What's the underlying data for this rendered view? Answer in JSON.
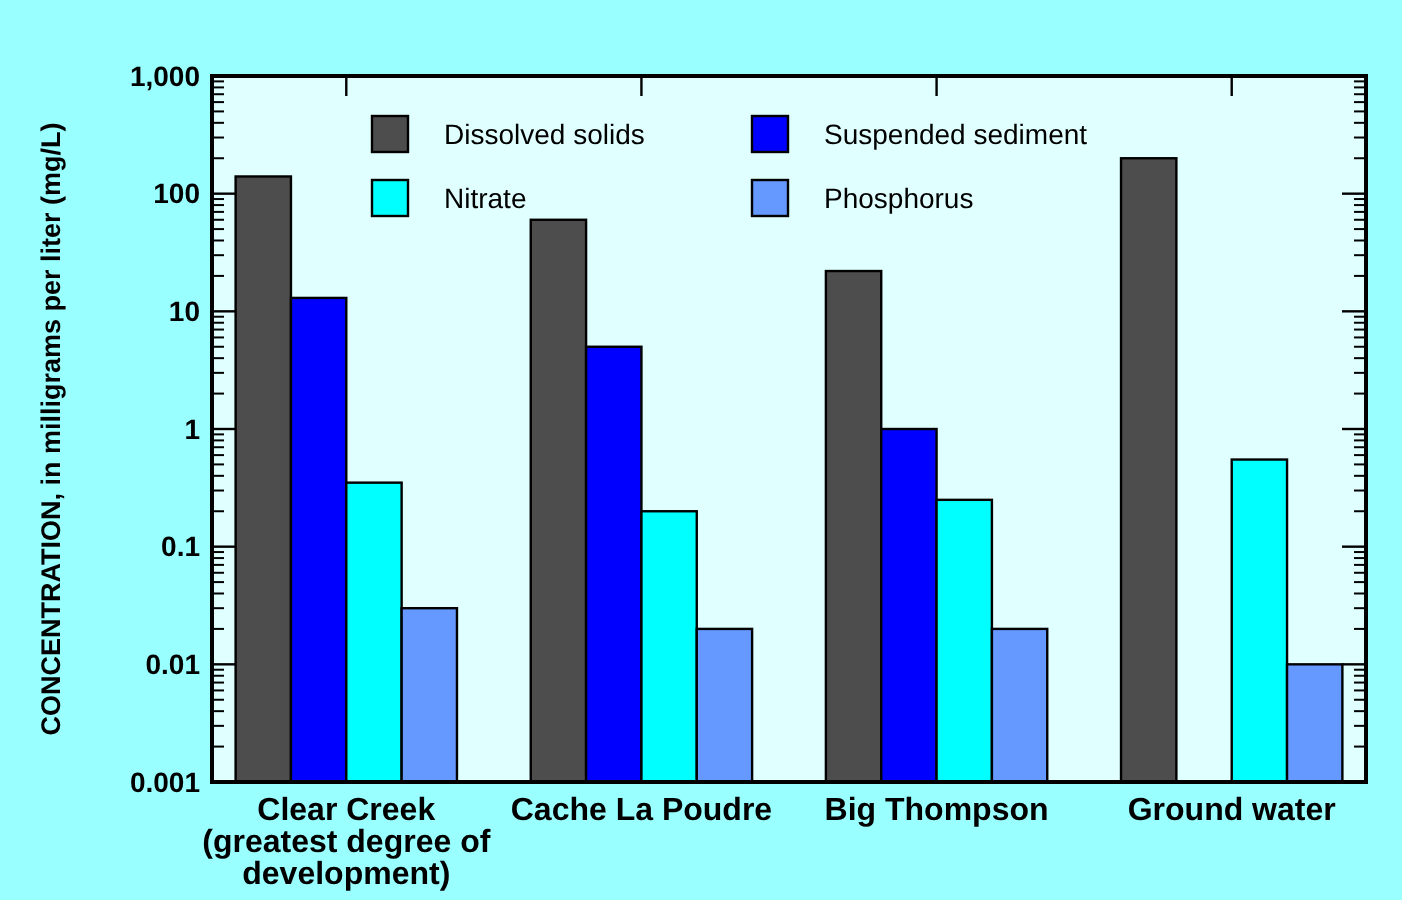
{
  "chart_data": {
    "type": "bar",
    "ylabel": "CONCENTRATION, in milligrams per liter (mg/L)",
    "categories": [
      "Clear Creek (greatest degree of development)",
      "Cache La Poudre",
      "Big Thompson",
      "Ground water"
    ],
    "series": [
      {
        "name": "Dissolved solids",
        "color": "#4d4d4d",
        "values": [
          140,
          60,
          22,
          200
        ]
      },
      {
        "name": "Suspended sediment",
        "color": "#0000ff",
        "values": [
          13,
          5,
          1,
          null
        ]
      },
      {
        "name": "Nitrate",
        "color": "#00ffff",
        "values": [
          0.35,
          0.2,
          0.25,
          0.55
        ]
      },
      {
        "name": "Phosphorus",
        "color": "#6699ff",
        "values": [
          0.03,
          0.02,
          0.02,
          0.01
        ]
      }
    ],
    "log": true,
    "ylim": [
      0.001,
      1000
    ],
    "yticks": [
      {
        "value": 1000,
        "label": "1,000"
      },
      100,
      10,
      1,
      0.1,
      0.01,
      0.001
    ],
    "legend": "top",
    "grid": false
  }
}
